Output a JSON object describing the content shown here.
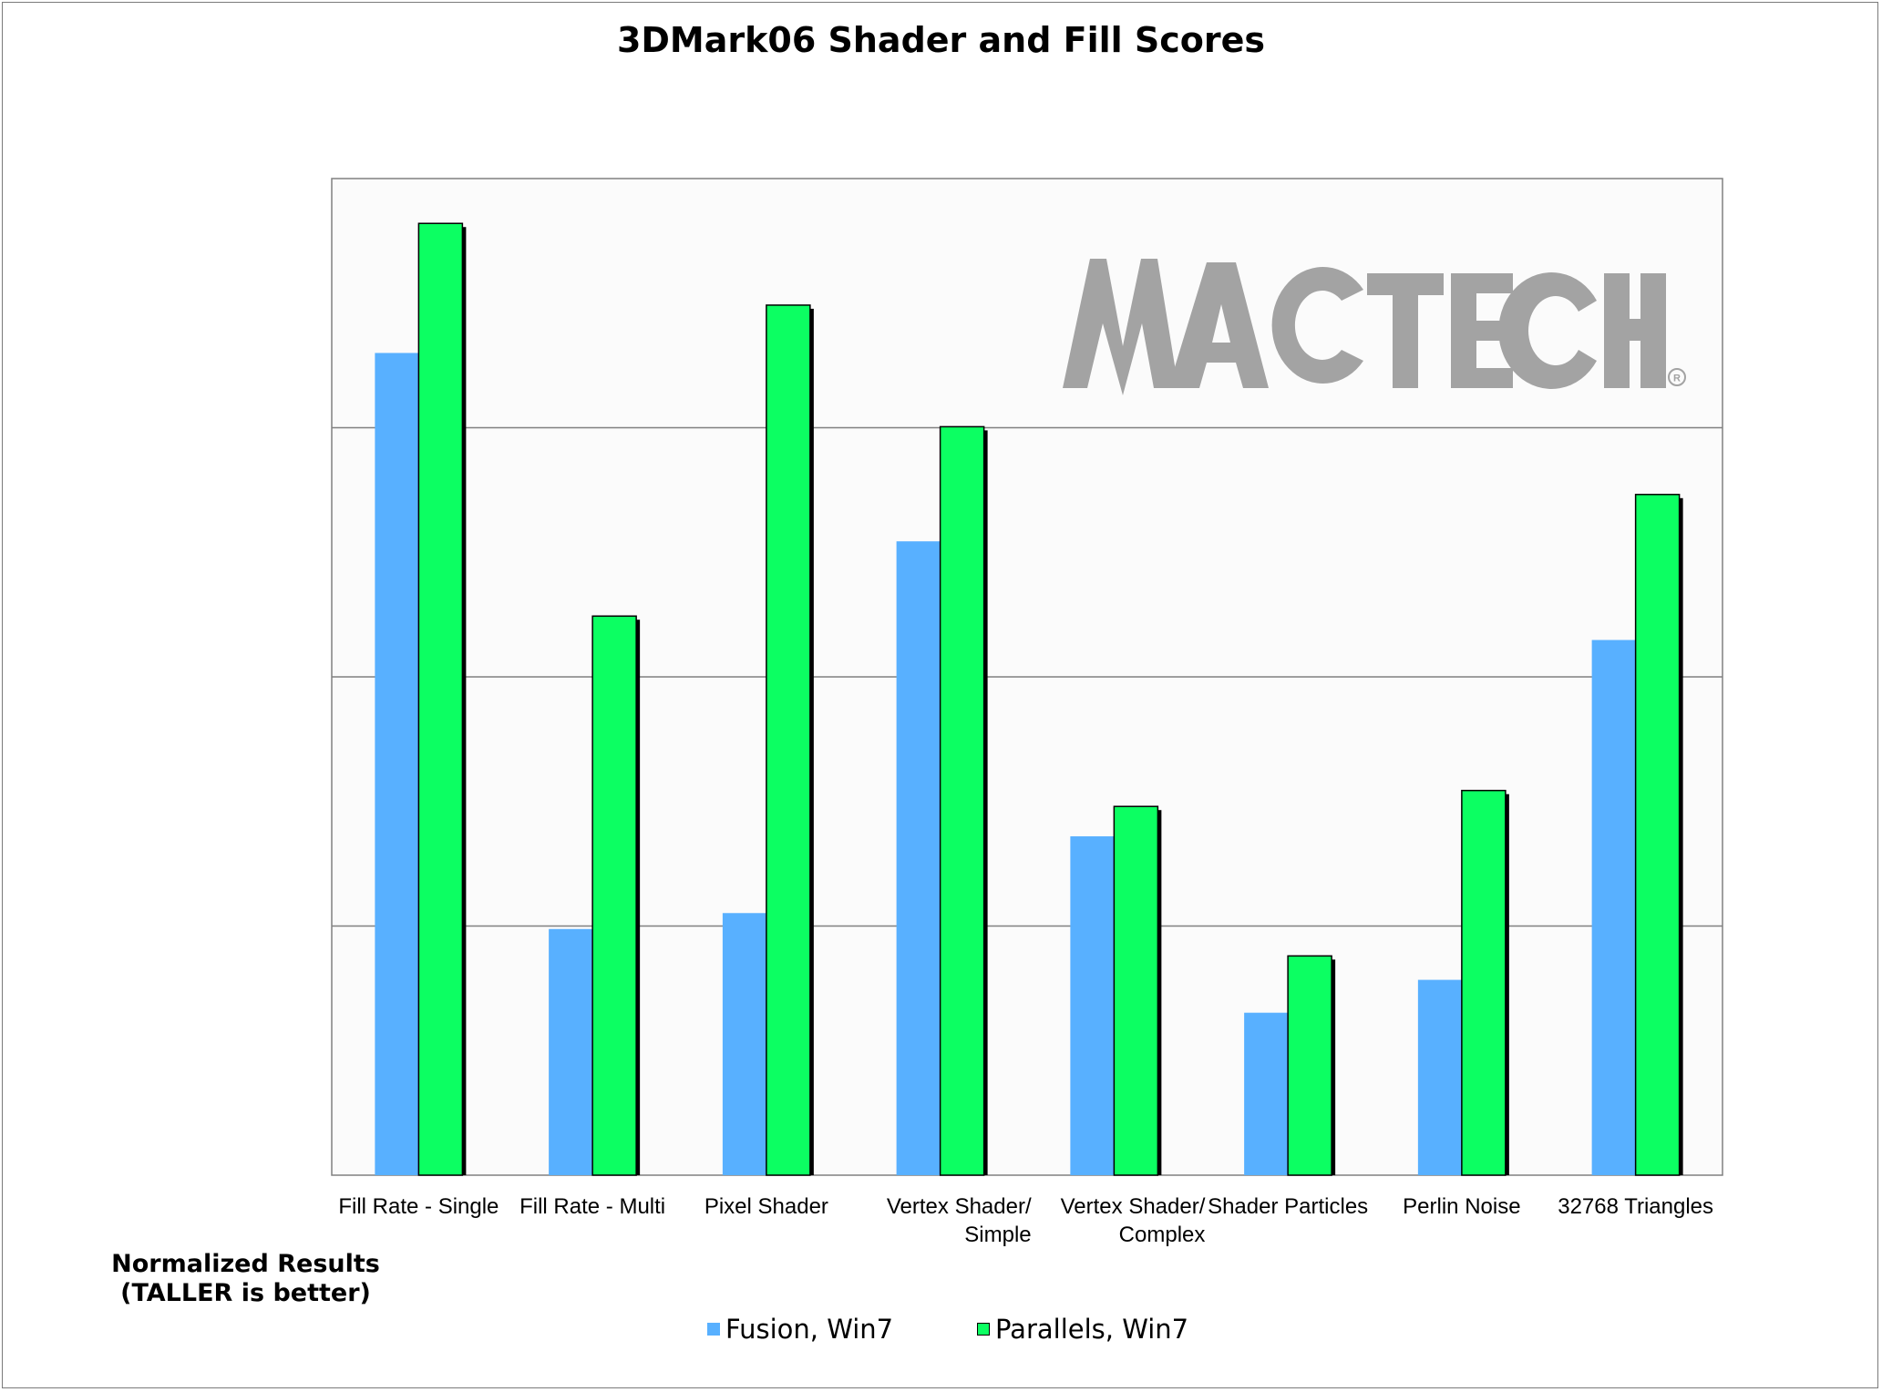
{
  "chart_data": {
    "type": "bar",
    "title": "3DMark06 Shader and Fill Scores",
    "note": [
      "Normalized Results",
      "(TALLER is better)"
    ],
    "categories": [
      "Fill Rate - Single",
      "Fill Rate - Multi",
      "Pixel Shader",
      "Vertex Shader/ Simple",
      "Vertex Shader/ Complex",
      "Shader Particles",
      "Perlin Noise",
      "32768 Triangles"
    ],
    "category_lines": [
      [
        "Fill Rate - Single"
      ],
      [
        "Fill Rate - Multi"
      ],
      [
        "Pixel Shader"
      ],
      [
        "Vertex Shader/",
        "Simple"
      ],
      [
        "Vertex Shader/",
        "Complex"
      ],
      [
        "Shader Particles"
      ],
      [
        "Perlin Noise"
      ],
      [
        "32768 Triangles"
      ]
    ],
    "series": [
      {
        "name": "Fusion, Win7",
        "color": "#58b0ff",
        "values": [
          0.825,
          0.247,
          0.263,
          0.636,
          0.34,
          0.163,
          0.196,
          0.537
        ]
      },
      {
        "name": "Parallels, Win7",
        "color": "#0cff62",
        "values": [
          0.955,
          0.561,
          0.873,
          0.751,
          0.37,
          0.22,
          0.386,
          0.683
        ]
      }
    ],
    "ylim": [
      0,
      1
    ],
    "grid": true,
    "y_tick_labels": false,
    "legend_position": "bottom",
    "watermark": "MACTECH"
  }
}
